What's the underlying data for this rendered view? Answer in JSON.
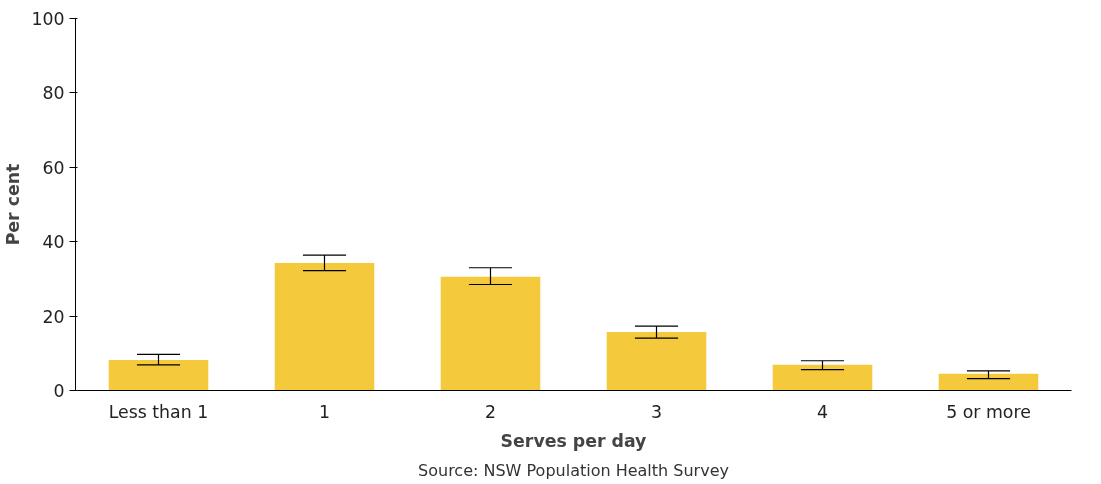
{
  "chart_data": {
    "type": "bar",
    "xlabel": "Serves per day",
    "ylabel": "Per cent",
    "categories": [
      "Less than 1",
      "1",
      "2",
      "3",
      "4",
      "5 or more"
    ],
    "values": [
      8.2,
      34.3,
      30.6,
      15.7,
      6.9,
      4.5
    ],
    "errors": [
      [
        6.9,
        9.7
      ],
      [
        32.2,
        36.4
      ],
      [
        28.5,
        33.0
      ],
      [
        14.1,
        17.3
      ],
      [
        5.6,
        8.0
      ],
      [
        3.2,
        5.3
      ]
    ],
    "color": "#f5c93c",
    "ylim": [
      0,
      100
    ],
    "yticks": [
      0,
      20,
      40,
      60,
      80,
      100
    ],
    "grid": false,
    "annotations": [
      "Source: NSW Population Health Survey"
    ]
  }
}
